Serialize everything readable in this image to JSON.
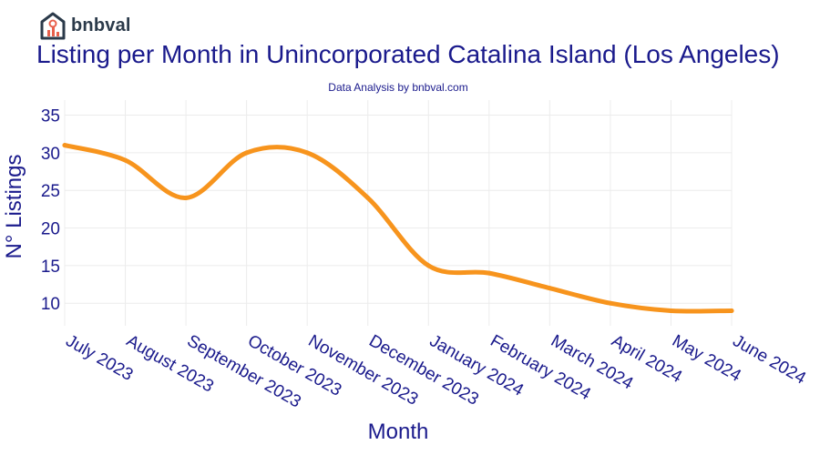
{
  "brand": {
    "name": "bnbval"
  },
  "header": {
    "title": "Listing per Month in Unincorporated Catalina Island (Los Angeles)",
    "subtitle": "Data Analysis by bnbval.com"
  },
  "colors": {
    "line": "#f7941d",
    "text": "#1a1a8c",
    "grid": "#ececec"
  },
  "chart_data": {
    "type": "line",
    "title": "Listing per Month in Unincorporated Catalina Island (Los Angeles)",
    "subtitle": "Data Analysis by bnbval.com",
    "xlabel": "Month",
    "ylabel": "N° Listings",
    "categories": [
      "July 2023",
      "August 2023",
      "September 2023",
      "October 2023",
      "November 2023",
      "December 2023",
      "January 2024",
      "February 2024",
      "March 2024",
      "April 2024",
      "May 2024",
      "June 2024"
    ],
    "series": [
      {
        "name": "Listings",
        "values": [
          31,
          29,
          24,
          30,
          30,
          24,
          15,
          14,
          12,
          10,
          9,
          9
        ]
      }
    ],
    "yticks": [
      10,
      15,
      20,
      25,
      30,
      35
    ],
    "ylim": [
      7,
      37
    ],
    "grid": true,
    "legend": "none"
  }
}
